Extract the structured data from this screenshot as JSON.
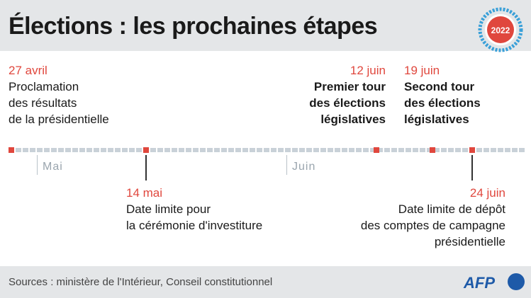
{
  "title": "Élections : les prochaines étapes",
  "badge": {
    "year": "2022",
    "color": "#e0473d"
  },
  "events": [
    {
      "id": "e1",
      "date": "27 avril",
      "lines": [
        "Proclamation",
        "des résultats",
        "de la présidentielle"
      ],
      "bold": false
    },
    {
      "id": "e2",
      "date": "14 mai",
      "lines": [
        "Date limite pour",
        "la cérémonie d'investiture"
      ],
      "bold": false
    },
    {
      "id": "e3",
      "date": "12 juin",
      "lines": [
        "Premier tour",
        "des élections",
        "législatives"
      ],
      "bold": true
    },
    {
      "id": "e4",
      "date": "19 juin",
      "lines": [
        "Second tour",
        "des élections",
        "législatives"
      ],
      "bold": true
    },
    {
      "id": "e5",
      "date": "24 juin",
      "lines": [
        "Date limite de dépôt",
        "des comptes de campagne",
        "présidentielle"
      ],
      "bold": false
    }
  ],
  "months": [
    "Mai",
    "Juin"
  ],
  "colors": {
    "accent": "#e0473d",
    "track": "#c9d1d8",
    "header_bg": "#e4e6e8",
    "afp_blue": "#1e5aa8"
  },
  "footer": {
    "sources": "Sources : ministère de l'Intérieur, Conseil constitutionnel",
    "logo": "AFP"
  }
}
